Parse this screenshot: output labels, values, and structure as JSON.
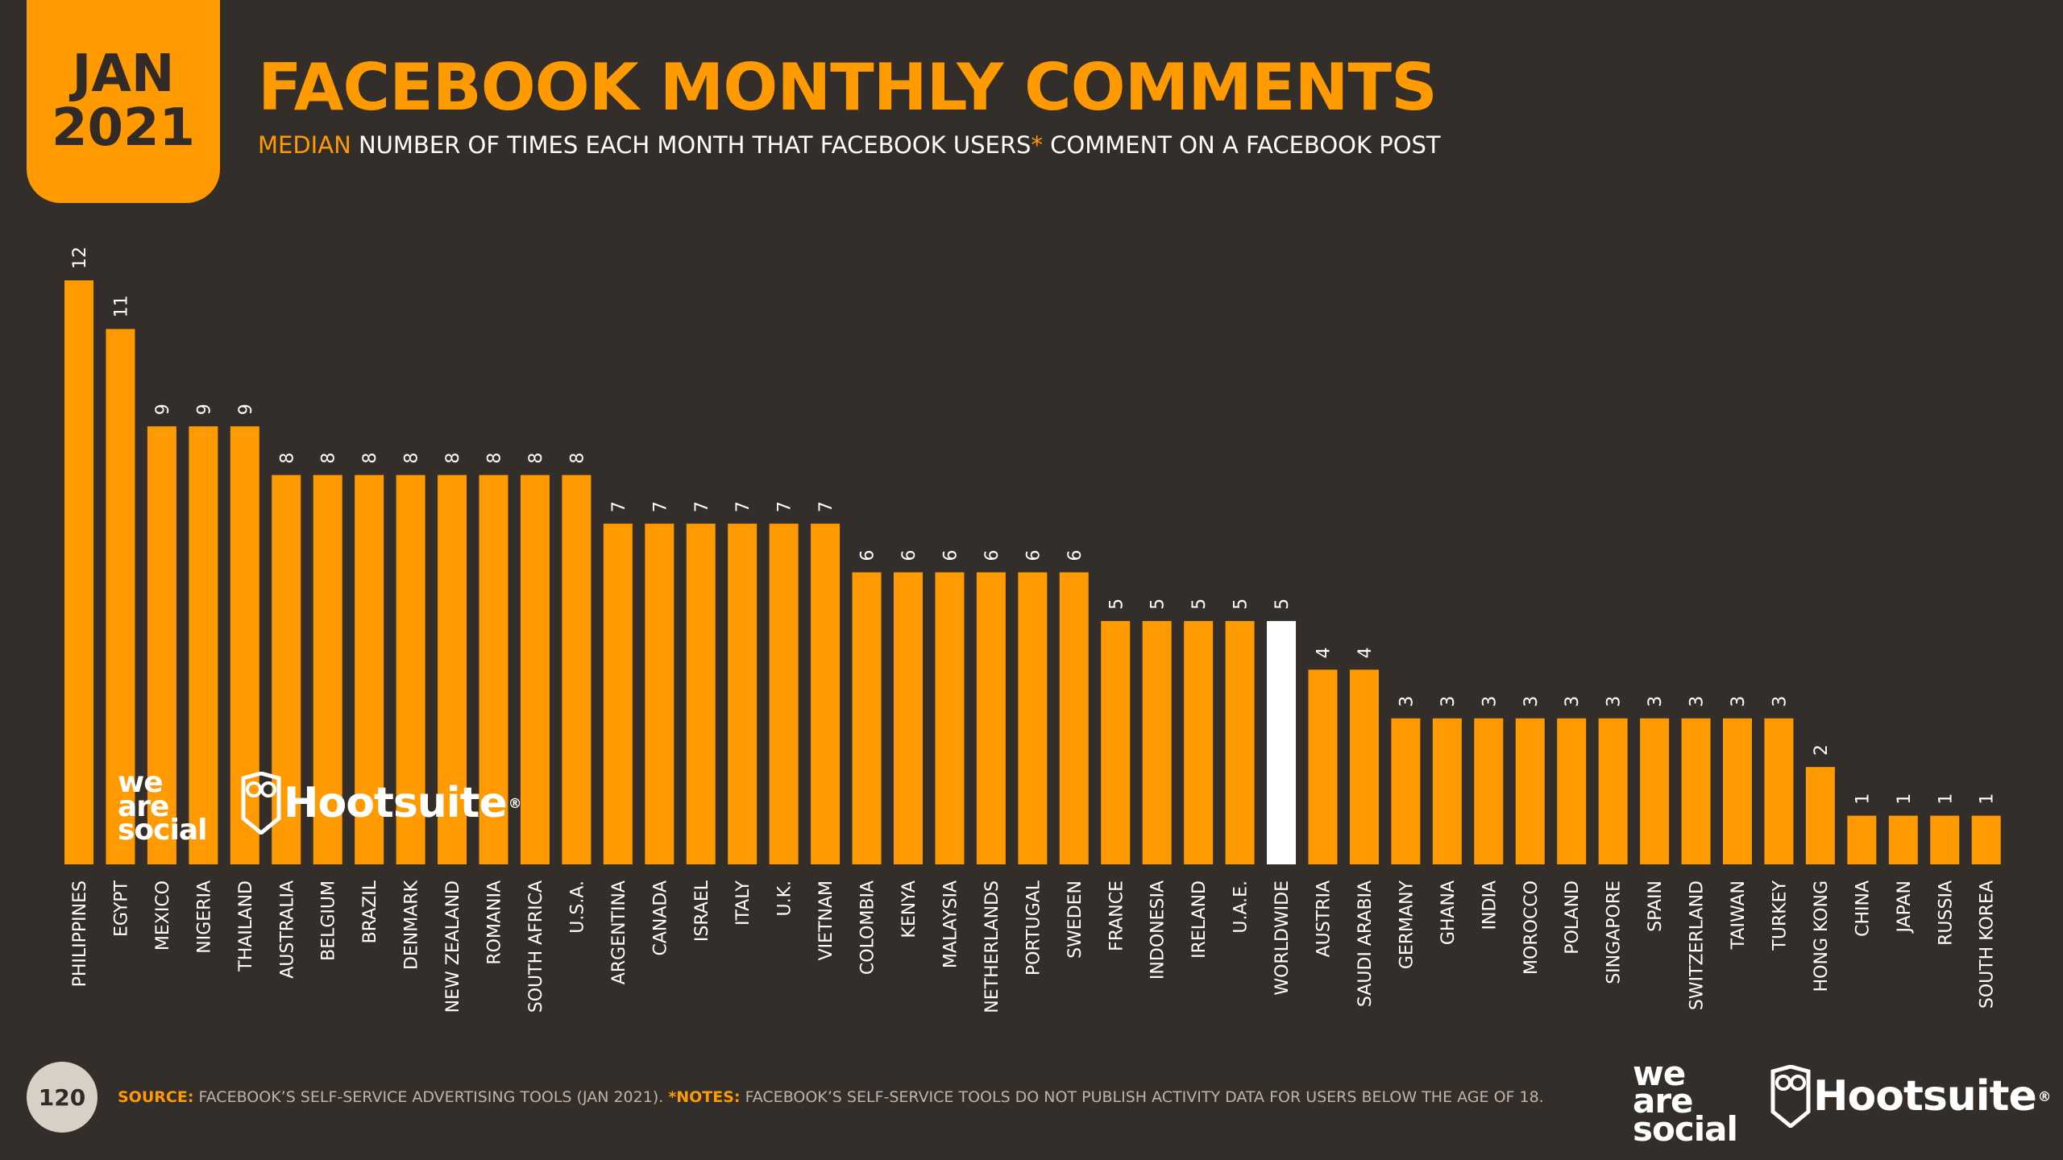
{
  "header": {
    "date_month": "JAN",
    "date_year": "2021",
    "title": "FACEBOOK MONTHLY COMMENTS",
    "subtitle_highlight": "MEDIAN",
    "subtitle_part1": " NUMBER OF TIMES EACH MONTH THAT FACEBOOK USERS",
    "subtitle_asterisk": "*",
    "subtitle_part2": " COMMENT ON A FACEBOOK POST"
  },
  "footer": {
    "page_number": "120",
    "source_label": "SOURCE:",
    "source_text": " FACEBOOK’S SELF-SERVICE ADVERTISING TOOLS (JAN 2021). ",
    "notes_label": "*NOTES:",
    "notes_text": " FACEBOOK’S SELF-SERVICE TOOLS DO NOT PUBLISH ACTIVITY DATA FOR USERS BELOW THE AGE OF 18."
  },
  "logos": {
    "was_line1": "we",
    "was_line2": "are",
    "was_line3": "social",
    "hootsuite": "Hootsuite",
    "registered": "®"
  },
  "colors": {
    "background": "#342e2a",
    "accent": "#ff9a00",
    "highlight_bar": "#ffffff",
    "text": "#ffffff"
  },
  "chart_data": {
    "type": "bar",
    "title": "FACEBOOK MONTHLY COMMENTS",
    "xlabel": "",
    "ylabel": "",
    "ylim": [
      0,
      12
    ],
    "highlight": "WORLDWIDE",
    "categories": [
      "PHILIPPINES",
      "EGYPT",
      "MEXICO",
      "NIGERIA",
      "THAILAND",
      "AUSTRALIA",
      "BELGIUM",
      "BRAZIL",
      "DENMARK",
      "NEW ZEALAND",
      "ROMANIA",
      "SOUTH AFRICA",
      "U.S.A.",
      "ARGENTINA",
      "CANADA",
      "ISRAEL",
      "ITALY",
      "U.K.",
      "VIETNAM",
      "COLOMBIA",
      "KENYA",
      "MALAYSIA",
      "NETHERLANDS",
      "PORTUGAL",
      "SWEDEN",
      "FRANCE",
      "INDONESIA",
      "IRELAND",
      "U.A.E.",
      "WORLDWIDE",
      "AUSTRIA",
      "SAUDI ARABIA",
      "GERMANY",
      "GHANA",
      "INDIA",
      "MOROCCO",
      "POLAND",
      "SINGAPORE",
      "SPAIN",
      "SWITZERLAND",
      "TAIWAN",
      "TURKEY",
      "HONG KONG",
      "CHINA",
      "JAPAN",
      "RUSSIA",
      "SOUTH KOREA"
    ],
    "values": [
      12,
      11,
      9,
      9,
      9,
      8,
      8,
      8,
      8,
      8,
      8,
      8,
      8,
      7,
      7,
      7,
      7,
      7,
      7,
      6,
      6,
      6,
      6,
      6,
      6,
      5,
      5,
      5,
      5,
      5,
      4,
      4,
      3,
      3,
      3,
      3,
      3,
      3,
      3,
      3,
      3,
      3,
      2,
      1,
      1,
      1,
      1
    ]
  }
}
